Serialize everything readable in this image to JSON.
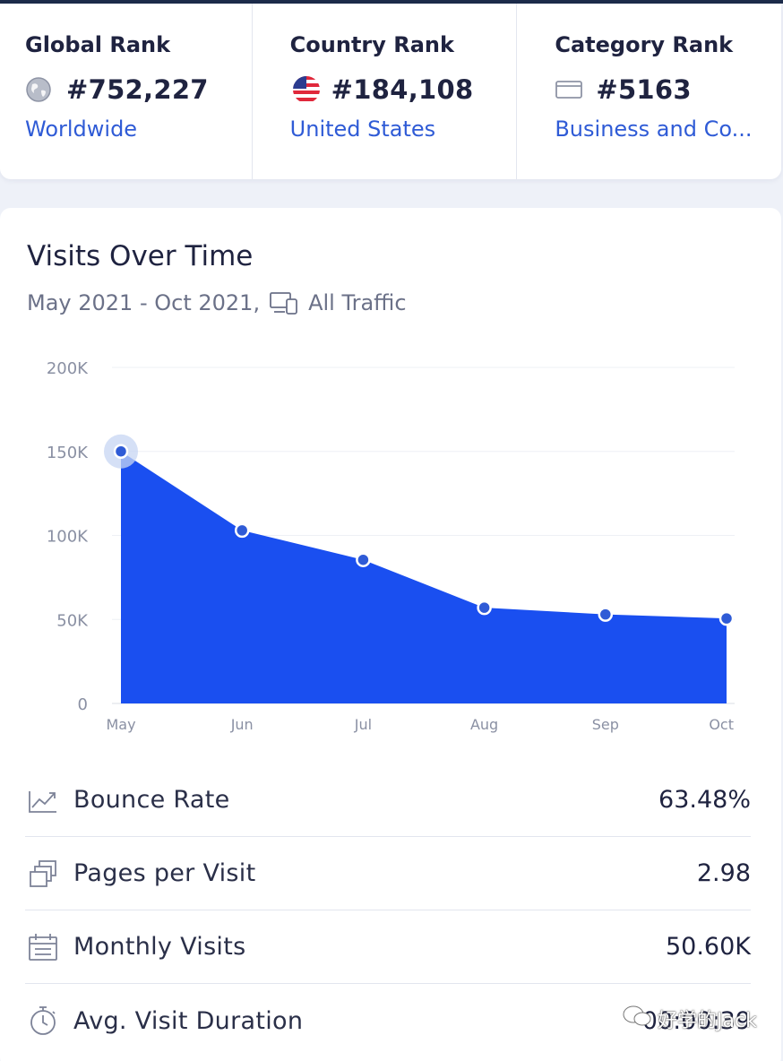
{
  "ranks": [
    {
      "title": "Global Rank",
      "value": "#752,227",
      "link": "Worldwide",
      "icon": "globe-icon"
    },
    {
      "title": "Country Rank",
      "value": "#184,108",
      "link": "United States",
      "icon": "us-flag-icon"
    },
    {
      "title": "Category Rank",
      "value": "#5163",
      "link": "Business and Co...",
      "icon": "category-card-icon"
    }
  ],
  "visits": {
    "title": "Visits Over Time",
    "date_range": "May 2021 - Oct 2021,",
    "traffic_label": "All Traffic"
  },
  "chart_data": {
    "type": "area",
    "x": [
      "May",
      "Jun",
      "Jul",
      "Aug",
      "Sep",
      "Oct"
    ],
    "y_ticks": [
      "200K",
      "150K",
      "100K",
      "50K",
      "0"
    ],
    "series": [
      {
        "values": [
          150000,
          103000,
          85500,
          57000,
          53000,
          50600
        ]
      }
    ],
    "ylim": [
      0,
      200000
    ],
    "grid": true,
    "colors": {
      "fill": "#1a4ff0",
      "point_fill": "#2f5bd6",
      "highlight": "#c7d6f3"
    }
  },
  "metrics": [
    {
      "label": "Bounce Rate",
      "value": "63.48%",
      "icon": "trend-chart-icon"
    },
    {
      "label": "Pages per Visit",
      "value": "2.98",
      "icon": "pages-stack-icon"
    },
    {
      "label": "Monthly Visits",
      "value": "50.60K",
      "icon": "calendar-icon"
    },
    {
      "label": "Avg. Visit Duration",
      "value": "00:00:39",
      "icon": "stopwatch-icon"
    }
  ],
  "watermark": "好学的Jack"
}
